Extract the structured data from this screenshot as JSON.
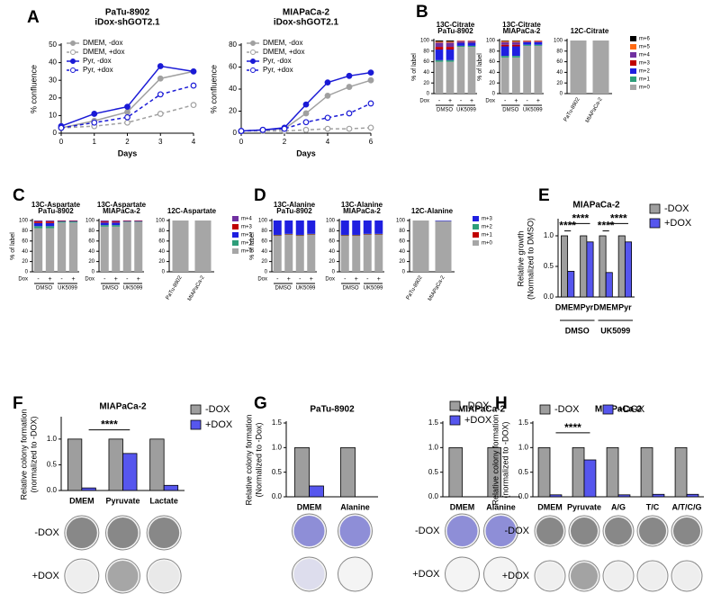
{
  "chart_data": [
    {
      "panel": "A",
      "type": "line",
      "title": "PaTu-8902",
      "subtitle": "iDox-shGOT2.1",
      "xlabel": "Days",
      "ylabel": "% confluence",
      "x": [
        0,
        1,
        2,
        3,
        4
      ],
      "xlim": [
        0,
        4
      ],
      "xticks": [
        0,
        1,
        2,
        3,
        4
      ],
      "ylim": [
        0,
        50
      ],
      "yticks": [
        0,
        10,
        20,
        30,
        40,
        50
      ],
      "series": [
        {
          "name": "DMEM, -dox",
          "color": "#a0a0a0",
          "dashed": false,
          "marker": "filled",
          "values": [
            3,
            7,
            12,
            31,
            35
          ]
        },
        {
          "name": "DMEM, +dox",
          "color": "#a0a0a0",
          "dashed": true,
          "marker": "open",
          "values": [
            3,
            4,
            6,
            11,
            16
          ]
        },
        {
          "name": "Pyr, -dox",
          "color": "#1a1ad6",
          "dashed": false,
          "marker": "filled",
          "values": [
            4,
            11,
            15,
            38,
            35
          ]
        },
        {
          "name": "Pyr, +dox",
          "color": "#1a1ad6",
          "dashed": true,
          "marker": "open",
          "values": [
            3,
            6,
            9,
            22,
            27
          ]
        }
      ]
    },
    {
      "type": "line",
      "title": "MIAPaCa-2",
      "subtitle": "iDox-shGOT2.1",
      "xlabel": "Days",
      "ylabel": "% confluence",
      "x": [
        0,
        1,
        2,
        3,
        4,
        5,
        6
      ],
      "xlim": [
        0,
        6
      ],
      "xticks": [
        0,
        2,
        4,
        6
      ],
      "ylim": [
        0,
        80
      ],
      "yticks": [
        0,
        20,
        40,
        60,
        80
      ],
      "series": [
        {
          "name": "DMEM, -dox",
          "color": "#a0a0a0",
          "dashed": false,
          "marker": "filled",
          "values": [
            2,
            3,
            4,
            18,
            34,
            42,
            48
          ]
        },
        {
          "name": "DMEM, +dox",
          "color": "#a0a0a0",
          "dashed": true,
          "marker": "open",
          "values": [
            2,
            2,
            2,
            3,
            4,
            4,
            5
          ]
        },
        {
          "name": "Pyr, -dox",
          "color": "#1a1ad6",
          "dashed": false,
          "marker": "filled",
          "values": [
            2,
            3,
            5,
            26,
            46,
            52,
            55
          ]
        },
        {
          "name": "Pyr, +dox",
          "color": "#1a1ad6",
          "dashed": true,
          "marker": "open",
          "values": [
            2,
            3,
            4,
            10,
            14,
            18,
            27
          ]
        }
      ]
    },
    {
      "panel": "B",
      "type": "stacked_bar",
      "title": "13C-Citrate",
      "subtitle": "PaTu-8902",
      "ylabel": "% of label",
      "categories": [
        "-",
        "+",
        "-",
        "+"
      ],
      "row_label": "Dox",
      "groups": [
        "DMSO",
        "UK5099"
      ],
      "ylim": [
        0,
        100
      ],
      "yticks": [
        0,
        20,
        40,
        60,
        80,
        100
      ],
      "series": [
        {
          "name": "m+0",
          "color": "#a6a6a6",
          "values": [
            60,
            60,
            88,
            88
          ]
        },
        {
          "name": "m+1",
          "color": "#2e9e7a",
          "values": [
            3,
            3,
            2,
            2
          ]
        },
        {
          "name": "m+2",
          "color": "#1f1fe0",
          "values": [
            20,
            20,
            6,
            6
          ]
        },
        {
          "name": "m+3",
          "color": "#c00000",
          "values": [
            5,
            5,
            1,
            1
          ]
        },
        {
          "name": "m+4",
          "color": "#7030a0",
          "values": [
            8,
            8,
            2,
            2
          ]
        },
        {
          "name": "m+5",
          "color": "#ff6a13",
          "values": [
            2,
            2,
            1,
            1
          ]
        },
        {
          "name": "m+6",
          "color": "#000000",
          "values": [
            2,
            2,
            0,
            0
          ]
        }
      ]
    },
    {
      "type": "stacked_bar",
      "title": "13C-Citrate",
      "subtitle": "MIAPaCa-2",
      "ylabel": "% of label",
      "categories": [
        "-",
        "+",
        "-",
        "+"
      ],
      "row_label": "Dox",
      "groups": [
        "DMSO",
        "UK5099"
      ],
      "ylim": [
        0,
        100
      ],
      "yticks": [
        0,
        20,
        40,
        60,
        80,
        100
      ],
      "series": [
        {
          "name": "m+0",
          "color": "#a6a6a6",
          "values": [
            68,
            68,
            90,
            90
          ]
        },
        {
          "name": "m+1",
          "color": "#2e9e7a",
          "values": [
            3,
            3,
            2,
            2
          ]
        },
        {
          "name": "m+2",
          "color": "#1f1fe0",
          "values": [
            18,
            18,
            5,
            5
          ]
        },
        {
          "name": "m+3",
          "color": "#c00000",
          "values": [
            3,
            3,
            1,
            1
          ]
        },
        {
          "name": "m+4",
          "color": "#7030a0",
          "values": [
            5,
            5,
            1,
            1
          ]
        },
        {
          "name": "m+5",
          "color": "#ff6a13",
          "values": [
            2,
            2,
            1,
            1
          ]
        },
        {
          "name": "m+6",
          "color": "#000000",
          "values": [
            1,
            1,
            0,
            0
          ]
        }
      ]
    },
    {
      "type": "stacked_bar",
      "title": "12C-Citrate",
      "categories": [
        "PaTu-8902",
        "MIAPaCa-2"
      ],
      "ylim": [
        0,
        100
      ],
      "yticks": [
        0,
        20,
        40,
        60,
        80,
        100
      ],
      "legend": true,
      "series": [
        {
          "name": "m+0",
          "color": "#a6a6a6",
          "values": [
            100,
            100
          ]
        },
        {
          "name": "m+1",
          "color": "#2e9e7a",
          "values": [
            0,
            0
          ]
        },
        {
          "name": "m+2",
          "color": "#1f1fe0",
          "values": [
            0,
            0
          ]
        },
        {
          "name": "m+3",
          "color": "#c00000",
          "values": [
            0,
            0
          ]
        },
        {
          "name": "m+4",
          "color": "#7030a0",
          "values": [
            0,
            0
          ]
        },
        {
          "name": "m+5",
          "color": "#ff6a13",
          "values": [
            0,
            0
          ]
        },
        {
          "name": "m+6",
          "color": "#000000",
          "values": [
            0,
            0
          ]
        }
      ]
    },
    {
      "panel": "C",
      "type": "stacked_bar",
      "title": "13C-Aspartate",
      "subtitle": "PaTu-8902",
      "ylabel": "% of label",
      "categories": [
        "-",
        "+",
        "-",
        "+"
      ],
      "row_label": "Dox",
      "groups": [
        "DMSO",
        "UK5099"
      ],
      "ylim": [
        0,
        100
      ],
      "yticks": [
        0,
        20,
        40,
        60,
        80,
        100
      ],
      "series": [
        {
          "name": "m+0",
          "color": "#a6a6a6",
          "values": [
            85,
            85,
            96,
            96
          ]
        },
        {
          "name": "m+1",
          "color": "#2e9e7a",
          "values": [
            4,
            4,
            2,
            2
          ]
        },
        {
          "name": "m+2",
          "color": "#1f1fe0",
          "values": [
            6,
            6,
            1,
            1
          ]
        },
        {
          "name": "m+3",
          "color": "#c00000",
          "values": [
            3,
            3,
            1,
            1
          ]
        },
        {
          "name": "m+4",
          "color": "#7030a0",
          "values": [
            2,
            2,
            0,
            0
          ]
        }
      ]
    },
    {
      "type": "stacked_bar",
      "title": "13C-Aspartate",
      "subtitle": "MIAPaCa-2",
      "categories": [
        "-",
        "+",
        "-",
        "+"
      ],
      "row_label": "Dox",
      "groups": [
        "DMSO",
        "UK5099"
      ],
      "ylim": [
        0,
        100
      ],
      "yticks": [
        0,
        20,
        40,
        60,
        80,
        100
      ],
      "series": [
        {
          "name": "m+0",
          "color": "#a6a6a6",
          "values": [
            88,
            88,
            97,
            97
          ]
        },
        {
          "name": "m+1",
          "color": "#2e9e7a",
          "values": [
            3,
            3,
            1,
            1
          ]
        },
        {
          "name": "m+2",
          "color": "#1f1fe0",
          "values": [
            5,
            5,
            1,
            1
          ]
        },
        {
          "name": "m+3",
          "color": "#c00000",
          "values": [
            2,
            2,
            1,
            1
          ]
        },
        {
          "name": "m+4",
          "color": "#7030a0",
          "values": [
            2,
            2,
            0,
            0
          ]
        }
      ]
    },
    {
      "type": "stacked_bar",
      "title": "12C-Aspartate",
      "categories": [
        "PaTu-8902",
        "MIAPaCa-2"
      ],
      "ylim": [
        0,
        100
      ],
      "yticks": [
        0,
        20,
        40,
        60,
        80,
        100
      ],
      "legend": true,
      "series": [
        {
          "name": "m+0",
          "color": "#a6a6a6",
          "values": [
            100,
            100
          ]
        },
        {
          "name": "m+1",
          "color": "#2e9e7a",
          "values": [
            0,
            0
          ]
        },
        {
          "name": "m+2",
          "color": "#1f1fe0",
          "values": [
            0,
            0
          ]
        },
        {
          "name": "m+3",
          "color": "#c00000",
          "values": [
            0,
            0
          ]
        },
        {
          "name": "m+4",
          "color": "#7030a0",
          "values": [
            0,
            0
          ]
        }
      ]
    },
    {
      "panel": "D",
      "type": "stacked_bar",
      "title": "13C-Alanine",
      "subtitle": "PaTu-8902",
      "ylabel": "% of label",
      "categories": [
        "-",
        "+",
        "-",
        "+"
      ],
      "row_label": "Dox",
      "groups": [
        "DMSO",
        "UK5099"
      ],
      "ylim": [
        0,
        100
      ],
      "yticks": [
        0,
        20,
        40,
        60,
        80,
        100
      ],
      "series": [
        {
          "name": "m+0",
          "color": "#a6a6a6",
          "values": [
            70,
            72,
            70,
            72
          ]
        },
        {
          "name": "m+1",
          "color": "#c00000",
          "values": [
            1,
            1,
            1,
            1
          ]
        },
        {
          "name": "m+2",
          "color": "#2e9e7a",
          "values": [
            1,
            1,
            1,
            1
          ]
        },
        {
          "name": "m+3",
          "color": "#1f1fe0",
          "values": [
            28,
            26,
            28,
            26
          ]
        }
      ]
    },
    {
      "type": "stacked_bar",
      "title": "13C-Alanine",
      "subtitle": "MIAPaCa-2",
      "categories": [
        "-",
        "+",
        "-",
        "+"
      ],
      "row_label": "Dox",
      "groups": [
        "DMSO",
        "UK5099"
      ],
      "ylim": [
        0,
        100
      ],
      "yticks": [
        0,
        20,
        40,
        60,
        80,
        100
      ],
      "series": [
        {
          "name": "m+0",
          "color": "#a6a6a6",
          "values": [
            70,
            70,
            72,
            72
          ]
        },
        {
          "name": "m+1",
          "color": "#c00000",
          "values": [
            1,
            1,
            1,
            1
          ]
        },
        {
          "name": "m+2",
          "color": "#2e9e7a",
          "values": [
            1,
            1,
            1,
            1
          ]
        },
        {
          "name": "m+3",
          "color": "#1f1fe0",
          "values": [
            28,
            28,
            26,
            26
          ]
        }
      ]
    },
    {
      "type": "stacked_bar",
      "title": "12C-Alanine",
      "categories": [
        "PaTu-8902",
        "MIAPaCa-2"
      ],
      "ylim": [
        0,
        100
      ],
      "yticks": [
        0,
        20,
        40,
        60,
        80,
        100
      ],
      "legend": true,
      "series": [
        {
          "name": "m+0",
          "color": "#a6a6a6",
          "values": [
            100,
            99
          ]
        },
        {
          "name": "m+1",
          "color": "#c00000",
          "values": [
            0,
            0
          ]
        },
        {
          "name": "m+2",
          "color": "#2e9e7a",
          "values": [
            0,
            0
          ]
        },
        {
          "name": "m+3",
          "color": "#1f1fe0",
          "values": [
            0,
            1
          ]
        }
      ]
    },
    {
      "panel": "E",
      "type": "bar",
      "title": "MIAPaCa-2",
      "ylabel": [
        "Relative growth",
        "(Normalized to DMSO)"
      ],
      "categories": [
        "DMEM",
        "Pyr",
        "DMEM",
        "Pyr"
      ],
      "groups": [
        "DMSO",
        "UK5099"
      ],
      "ylim": [
        0,
        1.25
      ],
      "yticks": [
        {
          "value": 0,
          "label": "0.0"
        },
        {
          "value": 0.5,
          "label": "0.5"
        },
        {
          "value": 1,
          "label": "1.0"
        }
      ],
      "legend": true,
      "annotations": [
        "****",
        "****",
        "****",
        "****"
      ],
      "series": [
        {
          "name": "-DOX",
          "color": "#9e9e9e",
          "values": [
            1.0,
            1.0,
            1.0,
            1.0
          ]
        },
        {
          "name": "+DOX",
          "color": "#5656ee",
          "values": [
            0.42,
            0.9,
            0.4,
            0.9
          ]
        }
      ]
    },
    {
      "panel": "F",
      "type": "bar",
      "title": "MIAPaCa-2",
      "ylabel": [
        "Relative colony formation",
        "(normalized to -DOX)"
      ],
      "categories": [
        "DMEM",
        "Pyruvate",
        "Lactate"
      ],
      "ylim": [
        0,
        1.4
      ],
      "yticks": [
        {
          "value": 0,
          "label": "0.0"
        },
        {
          "value": 0.5,
          "label": "0.5"
        },
        {
          "value": 1,
          "label": "1.0"
        }
      ],
      "legend": true,
      "annotations": [
        "****"
      ],
      "colony_rows": [
        "-DOX",
        "+DOX"
      ],
      "stain": "#303030",
      "series": [
        {
          "name": "-DOX",
          "color": "#9e9e9e",
          "values": [
            1.0,
            1.0,
            1.0
          ]
        },
        {
          "name": "+DOX",
          "color": "#5656ee",
          "values": [
            0.05,
            0.72,
            0.1
          ]
        }
      ]
    },
    {
      "panel": "G",
      "type": "bar",
      "title": "PaTu-8902",
      "ylabel": [
        "Relative colony formation",
        "(Normalized to -Dox)"
      ],
      "categories": [
        "DMEM",
        "Alanine"
      ],
      "ylim": [
        0,
        1.5
      ],
      "stain": "#3a3ac0",
      "yticks": [
        {
          "value": 0,
          "label": "0.0"
        },
        {
          "value": 0.5,
          "label": "0.5"
        },
        {
          "value": 1,
          "label": "1.0"
        },
        {
          "value": 1.5,
          "label": "1.5"
        }
      ],
      "series": [
        {
          "name": "-DOX",
          "color": "#9e9e9e",
          "values": [
            1.0,
            1.0
          ]
        },
        {
          "name": "+DOX",
          "color": "#5656ee",
          "values": [
            0.22,
            0.0
          ]
        }
      ]
    },
    {
      "type": "bar",
      "title": "MIAPaCa-2",
      "categories": [
        "DMEM",
        "Alanine"
      ],
      "ylim": [
        0,
        1.5
      ],
      "legend": true,
      "colony_rows": [
        "-DOX",
        "+DOX"
      ],
      "stain": "#3a3ac0",
      "yticks": [
        {
          "value": 0,
          "label": "0.0"
        },
        {
          "value": 0.5,
          "label": "0.5"
        },
        {
          "value": 1,
          "label": "1.0"
        },
        {
          "value": 1.5,
          "label": "1.5"
        }
      ],
      "series": [
        {
          "name": "-DOX",
          "color": "#9e9e9e",
          "values": [
            1.0,
            1.0
          ]
        },
        {
          "name": "+DOX",
          "color": "#5656ee",
          "values": [
            0.0,
            0.0
          ]
        }
      ]
    },
    {
      "panel": "H",
      "type": "bar",
      "title": "MIAPaCa-2",
      "ylabel": [
        "Relative colony formation",
        "(normalized to -DOX)"
      ],
      "categories": [
        "DMEM",
        "Pyruvate",
        "A/G",
        "T/C",
        "A/T/C/G"
      ],
      "ylim": [
        0,
        1.5
      ],
      "legend": true,
      "annotations": [
        "****"
      ],
      "colony_rows": [
        "-DOX",
        "+DOX"
      ],
      "stain": "#303030",
      "yticks": [
        {
          "value": 0,
          "label": "0.0"
        },
        {
          "value": 0.5,
          "label": "0.5"
        },
        {
          "value": 1,
          "label": "1.0"
        },
        {
          "value": 1.5,
          "label": "1.5"
        }
      ],
      "series": [
        {
          "name": "-DOX",
          "color": "#9e9e9e",
          "values": [
            1.0,
            1.0,
            1.0,
            1.0,
            1.0
          ]
        },
        {
          "name": "+DOX",
          "color": "#5656ee",
          "values": [
            0.04,
            0.75,
            0.04,
            0.05,
            0.05
          ]
        }
      ]
    }
  ]
}
